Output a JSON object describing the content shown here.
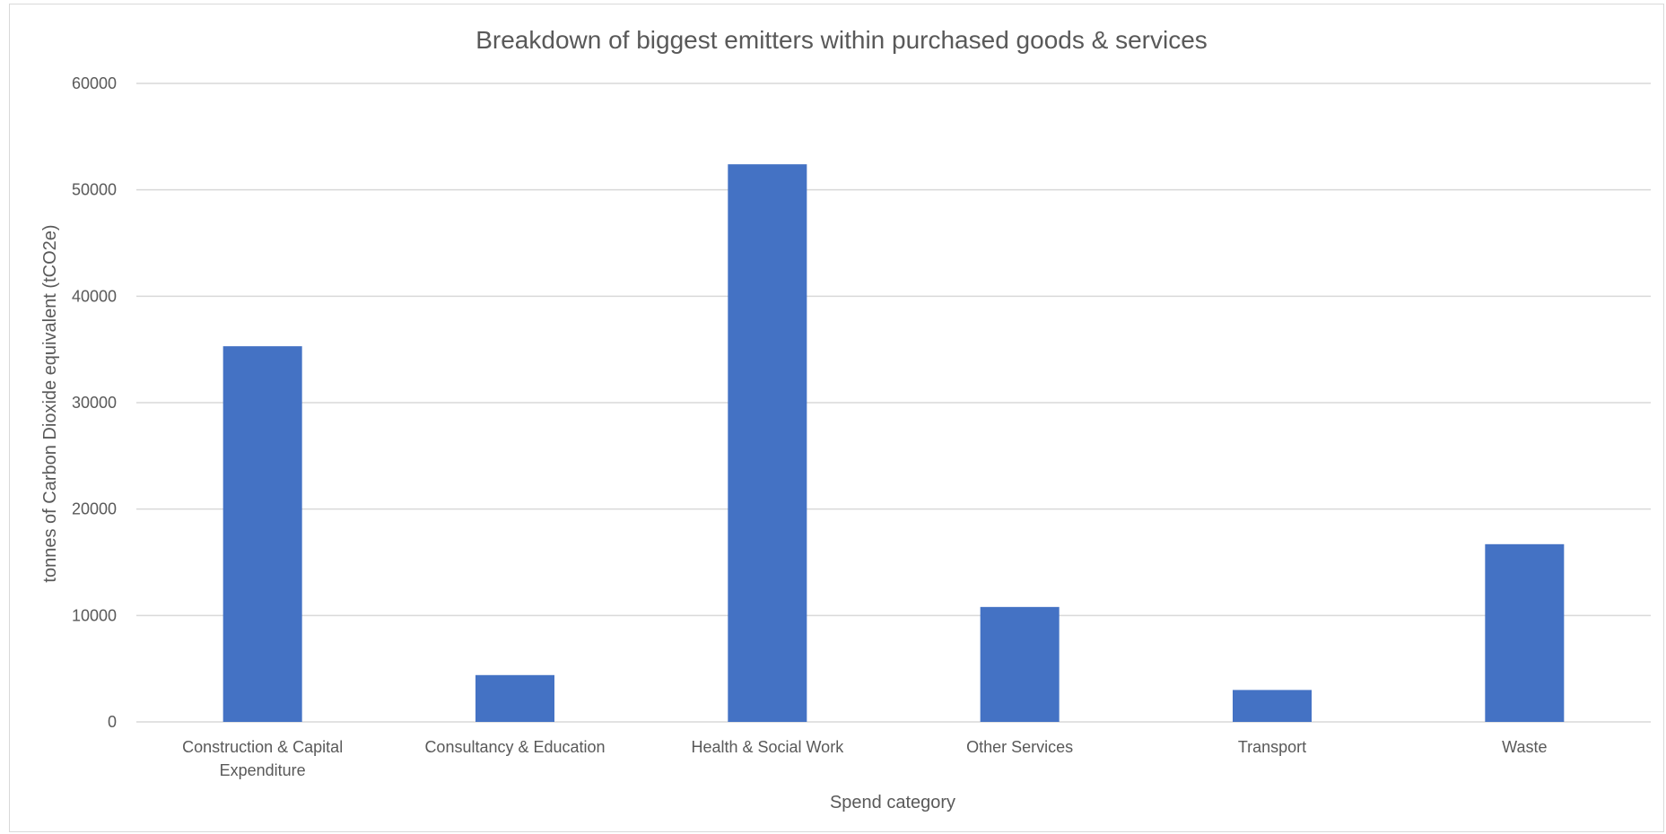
{
  "chart_data": {
    "type": "bar",
    "title": "Breakdown of biggest emitters within purchased goods & services",
    "xlabel": "Spend category",
    "ylabel": "tonnes of Carbon Dioxide equivalent (tCO2e)",
    "ylim": [
      0,
      60000
    ],
    "yticks": [
      0,
      10000,
      20000,
      30000,
      40000,
      50000,
      60000
    ],
    "categories": [
      [
        "Construction & Capital",
        "Expenditure"
      ],
      [
        "Consultancy & Education"
      ],
      [
        "Health & Social Work"
      ],
      [
        "Other Services"
      ],
      [
        "Transport"
      ],
      [
        "Waste"
      ]
    ],
    "values": [
      35300,
      4400,
      52400,
      10800,
      3000,
      16700
    ],
    "bar_color": "#4472c4",
    "gridline_color": "#d9d9d9",
    "grid": true,
    "legend": "none"
  }
}
